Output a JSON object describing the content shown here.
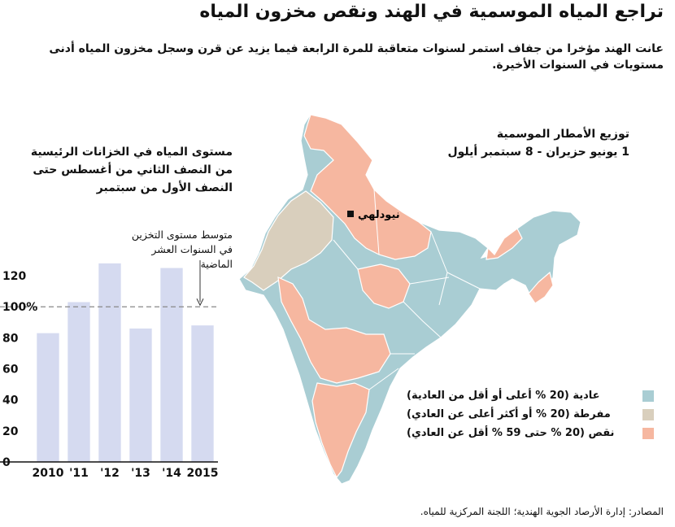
{
  "title": "تراجع المياه الموسمية في الهند ونقص مخزون المياه",
  "subtitle": "عانت الهند مؤخرا من جفاف استمر لسنوات متعاقبة للمرة الرابعة فيما يزيد عن قرن وسجل مخزون المياه أدنى مستويات في السنوات الأخيرة.",
  "chart_heading": "مستوى المياه في الخزانات الرئيسية من النصف الثاني من أغسطس حتى النصف الأول من سبتمبر",
  "avg_label": "متوسط مستوى التخزين في السنوات العشر الماضية",
  "map_heading_1": "توزيع الأمطار الموسمية",
  "map_heading_2": "1 يونيو حزيران - 8 سبتمبر أيلول",
  "city": "نيودلهي",
  "legend": [
    {
      "label": "عادية (20 % أعلى أو أقل من العادية)",
      "color": "#a9cdd3"
    },
    {
      "label": "مفرطة (20 % أو أكثر أعلى عن العادي)",
      "color": "#d9cfbd"
    },
    {
      "label": "نقص (20 % حتى 59 % أقل عن العادي)",
      "color": "#f6b7a0"
    }
  ],
  "source": "المصادر: إدارة الأرصاد الجوية الهندية؛ اللجنة المركزية للمياه.",
  "colors": {
    "bar": "#d5daf0",
    "normal": "#a9cdd3",
    "excess": "#d9cfbd",
    "deficient": "#f6b7a0",
    "reference": "#888888"
  },
  "chart_data": {
    "type": "bar",
    "title": "مستوى المياه في الخزانات الرئيسية من النصف الثاني من أغسطس حتى النصف الأول من سبتمبر",
    "categories": [
      "2010",
      "'11",
      "'12",
      "'13",
      "'14",
      "2015"
    ],
    "values": [
      83,
      103,
      128,
      86,
      125,
      88
    ],
    "ylim": [
      0,
      130
    ],
    "yticks": [
      0,
      20,
      40,
      60,
      80,
      "100%",
      120
    ],
    "reference_line": {
      "value": 100,
      "label": "متوسط مستوى التخزين في السنوات العشر الماضية",
      "style": "dashed"
    },
    "grid": false
  }
}
